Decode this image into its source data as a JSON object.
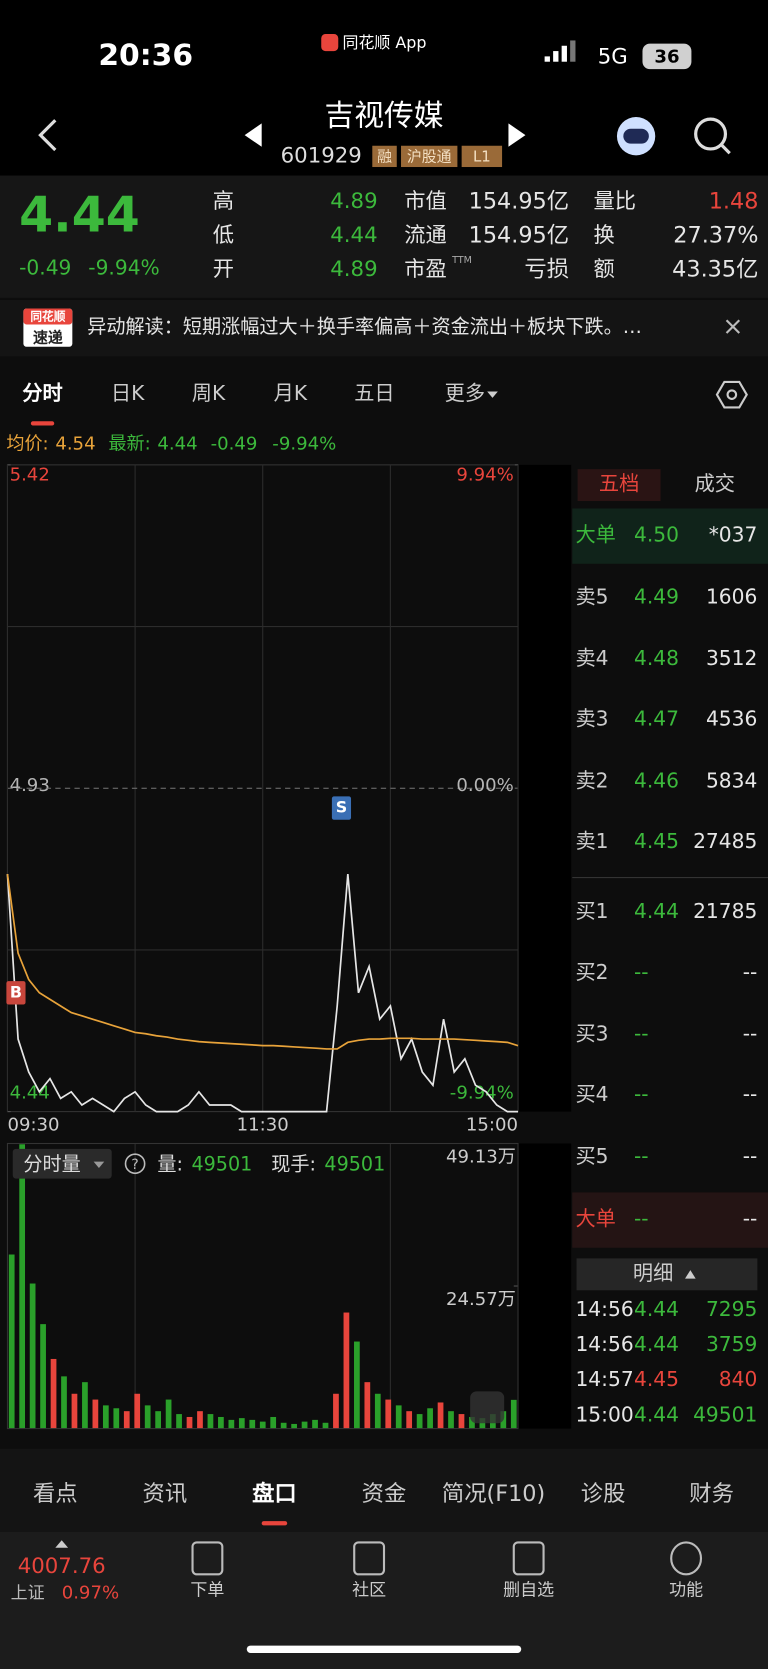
{
  "status_bar": {
    "time": "20:36",
    "app": "同花顺 App",
    "network": "5G",
    "battery": "36"
  },
  "header": {
    "title": "吉视传媒",
    "code": "601929",
    "tags": [
      "融",
      "沪股通",
      "L1"
    ]
  },
  "quote": {
    "price": "4.44",
    "change": "-0.49",
    "change_pct": "-9.94%",
    "ttm": "TTM",
    "rows": [
      [
        "高",
        "4.89",
        "市值",
        "154.95亿",
        "量比",
        "1.48"
      ],
      [
        "低",
        "4.44",
        "流通",
        "154.95亿",
        "换",
        "27.37%"
      ],
      [
        "开",
        "4.89",
        "市盈",
        "亏损",
        "额",
        "43.35亿"
      ]
    ]
  },
  "alert": {
    "badge": [
      "同花顺",
      "速递"
    ],
    "text": "异动解读：短期涨幅过大＋换手率偏高＋资金流出＋板块下跌。…"
  },
  "tabs": [
    "分时",
    "日K",
    "周K",
    "月K",
    "五日",
    "更多"
  ],
  "info": {
    "avg_label": "均价:",
    "avg": "4.54",
    "latest_label": "最新:",
    "latest": "4.44",
    "change": "-0.49",
    "change_pct": "-9.94%"
  },
  "chart_data": [
    {
      "type": "line",
      "x": [
        0,
        5,
        10,
        15,
        20,
        25,
        30,
        35,
        40,
        45,
        50,
        55,
        60,
        65,
        70,
        75,
        80,
        85,
        90,
        95,
        100,
        105,
        110,
        115,
        120,
        125,
        130,
        135,
        140,
        145,
        150,
        155,
        160,
        165,
        170,
        175,
        180,
        185,
        190,
        195,
        200,
        205,
        210,
        215,
        220,
        225,
        230,
        235,
        240
      ],
      "series": [
        {
          "color": "#e6e6e6",
          "values": [
            4.8,
            4.55,
            4.5,
            4.47,
            4.49,
            4.46,
            4.47,
            4.45,
            4.46,
            4.45,
            4.44,
            4.46,
            4.47,
            4.45,
            4.44,
            4.44,
            4.44,
            4.45,
            4.47,
            4.45,
            4.45,
            4.45,
            4.44,
            4.44,
            4.44,
            4.44,
            4.44,
            4.44,
            4.44,
            4.44,
            4.44,
            4.6,
            4.8,
            4.62,
            4.66,
            4.58,
            4.6,
            4.52,
            4.55,
            4.5,
            4.48,
            4.58,
            4.5,
            4.52,
            4.48,
            4.47,
            4.45,
            4.44,
            4.44
          ]
        },
        {
          "color": "#e8a33a",
          "values": [
            4.8,
            4.68,
            4.64,
            4.62,
            4.61,
            4.6,
            4.59,
            4.585,
            4.58,
            4.575,
            4.57,
            4.565,
            4.56,
            4.558,
            4.555,
            4.553,
            4.55,
            4.548,
            4.546,
            4.545,
            4.544,
            4.543,
            4.542,
            4.541,
            4.54,
            4.54,
            4.539,
            4.538,
            4.537,
            4.536,
            4.535,
            4.535,
            4.545,
            4.548,
            4.55,
            4.55,
            4.551,
            4.551,
            4.551,
            4.55,
            4.55,
            4.55,
            4.55,
            4.549,
            4.548,
            4.547,
            4.546,
            4.545,
            4.54
          ]
        }
      ],
      "xlim": [
        0,
        240
      ],
      "xticks": [
        {
          "value": 0,
          "label": "09:30"
        },
        {
          "value": 120,
          "label": "11:30"
        },
        {
          "value": 240,
          "label": "15:00"
        }
      ],
      "ylim": [
        4.44,
        5.42
      ],
      "yticks": [
        5.42,
        4.93,
        4.44
      ],
      "y2lim": [
        -9.94,
        9.94
      ],
      "y2ticks": [
        {
          "value": 9.94,
          "label": "9.94%"
        },
        {
          "value": 0,
          "label": "0.00%"
        },
        {
          "value": -9.94,
          "label": "-9.94%"
        }
      ],
      "trade_marks": [
        {
          "label": "B",
          "x": 4,
          "y": 4.62
        },
        {
          "label": "S",
          "x": 157,
          "y": 4.9
        }
      ],
      "grid": true
    },
    {
      "type": "bar",
      "x": [
        0,
        5,
        10,
        15,
        20,
        25,
        30,
        35,
        40,
        45,
        50,
        55,
        60,
        65,
        70,
        75,
        80,
        85,
        90,
        95,
        100,
        105,
        110,
        115,
        120,
        125,
        130,
        135,
        140,
        145,
        150,
        155,
        160,
        165,
        170,
        175,
        180,
        185,
        190,
        195,
        200,
        205,
        210,
        215,
        220,
        225,
        230,
        235,
        240
      ],
      "values": [
        300000,
        490000,
        250000,
        180000,
        120000,
        90000,
        60000,
        80000,
        50000,
        40000,
        35000,
        30000,
        60000,
        40000,
        30000,
        50000,
        25000,
        20000,
        30000,
        25000,
        20000,
        15000,
        18000,
        15000,
        12000,
        20000,
        10000,
        8000,
        12000,
        15000,
        10000,
        60000,
        200000,
        150000,
        80000,
        60000,
        50000,
        40000,
        30000,
        25000,
        35000,
        45000,
        30000,
        25000,
        20000,
        18000,
        25000,
        30000,
        49501
      ],
      "up_color": "#e8453c",
      "down_color": "#2aa02a",
      "xlim": [
        0,
        240
      ],
      "ylim": [
        0,
        491300
      ],
      "yticks": [
        {
          "value": 491300,
          "label": "49.13万"
        },
        {
          "value": 245700,
          "label": "24.57万"
        }
      ]
    }
  ],
  "volume_header": {
    "selector": "分时量",
    "help": "?",
    "volume_label": "量:",
    "volume": "49501",
    "hand_label": "现手:",
    "hand": "49501"
  },
  "order_book": {
    "tabs": [
      "五档",
      "成交"
    ],
    "rows": [
      [
        "大单",
        "4.50",
        "*037"
      ],
      [
        "卖5",
        "4.49",
        "1606"
      ],
      [
        "卖4",
        "4.48",
        "3512"
      ],
      [
        "卖3",
        "4.47",
        "4536"
      ],
      [
        "卖2",
        "4.46",
        "5834"
      ],
      [
        "卖1",
        "4.45",
        "27485"
      ],
      [
        "买1",
        "4.44",
        "21785"
      ],
      [
        "买2",
        "--",
        "--"
      ],
      [
        "买3",
        "--",
        "--"
      ],
      [
        "买4",
        "--",
        "--"
      ],
      [
        "买5",
        "--",
        "--"
      ],
      [
        "大单",
        "--",
        "--"
      ]
    ]
  },
  "detail": {
    "title": "明细",
    "trades": [
      {
        "time": "14:56",
        "price": "4.44",
        "volume": "7295",
        "color": "#3cb93c"
      },
      {
        "time": "14:56",
        "price": "4.44",
        "volume": "3759",
        "color": "#3cb93c"
      },
      {
        "time": "14:57",
        "price": "4.45",
        "volume": "840",
        "color": "#e8453c"
      },
      {
        "time": "15:00",
        "price": "4.44",
        "volume": "49501",
        "color": "#3cb93c"
      }
    ]
  },
  "bottom_tabs": [
    "看点",
    "资讯",
    "盘口",
    "资金",
    "简况(F10)",
    "诊股",
    "财务"
  ],
  "nav": {
    "index_value": "4007.76",
    "index_name": "上证",
    "index_pct": "0.97%",
    "items": [
      "下单",
      "社区",
      "删自选",
      "功能"
    ]
  }
}
